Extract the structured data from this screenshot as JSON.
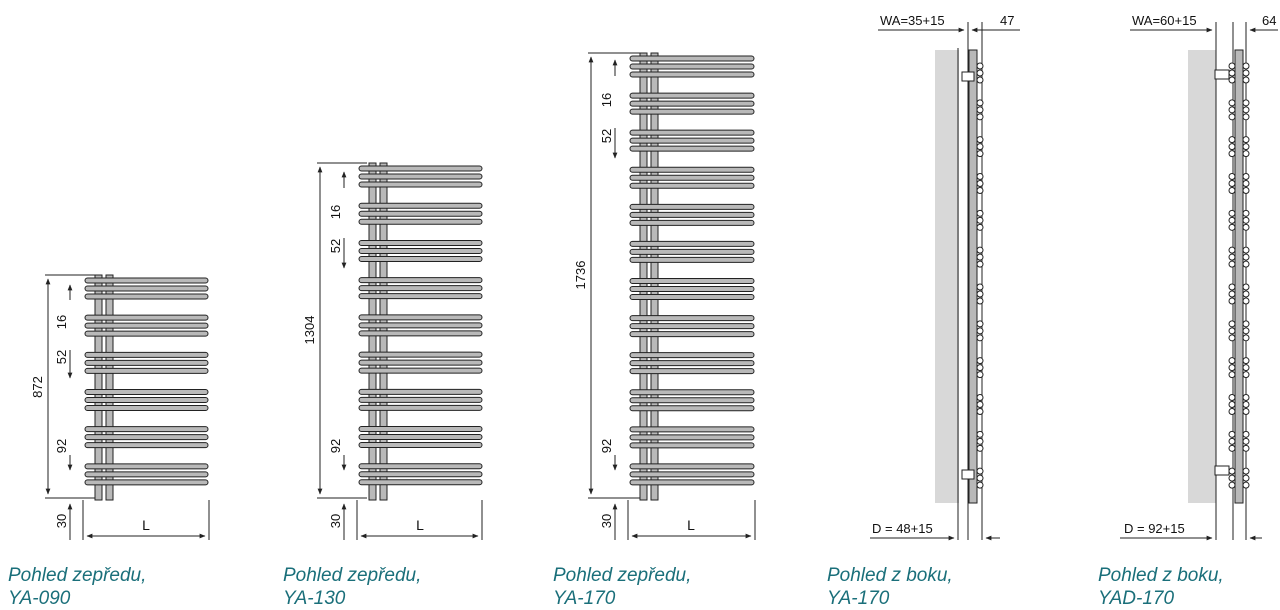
{
  "colors": {
    "caption": "#1a6f7a",
    "bar_fill": "#b9b9b9",
    "wall": "#d8d8d8",
    "line": "#222222"
  },
  "front_views": [
    {
      "total_height_label": "872",
      "pitch_label": "16",
      "gap_label": "52",
      "bottom_pitch_label": "92",
      "bottom_offset_label": "30",
      "width_label": "L",
      "caption_line1": "Pohled zepředu,",
      "caption_line2": "YA-090"
    },
    {
      "total_height_label": "1304",
      "pitch_label": "16",
      "gap_label": "52",
      "bottom_pitch_label": "92",
      "bottom_offset_label": "30",
      "width_label": "L",
      "caption_line1": "Pohled zepředu,",
      "caption_line2": "YA-130"
    },
    {
      "total_height_label": "1736",
      "pitch_label": "16",
      "gap_label": "52",
      "bottom_pitch_label": "92",
      "bottom_offset_label": "30",
      "width_label": "L",
      "caption_line1": "Pohled zepředu,",
      "caption_line2": "YA-170"
    }
  ],
  "side_views": [
    {
      "wall_distance_label": "WA=35+15",
      "depth_label": "47",
      "bottom_label": "D = 48+15",
      "caption_line1": "Pohled z boku,",
      "caption_line2": "YA-170"
    },
    {
      "wall_distance_label": "WA=60+15",
      "depth_label": "64",
      "bottom_label": "D = 92+15",
      "caption_line1": "Pohled z boku,",
      "caption_line2": "YAD-170"
    }
  ]
}
